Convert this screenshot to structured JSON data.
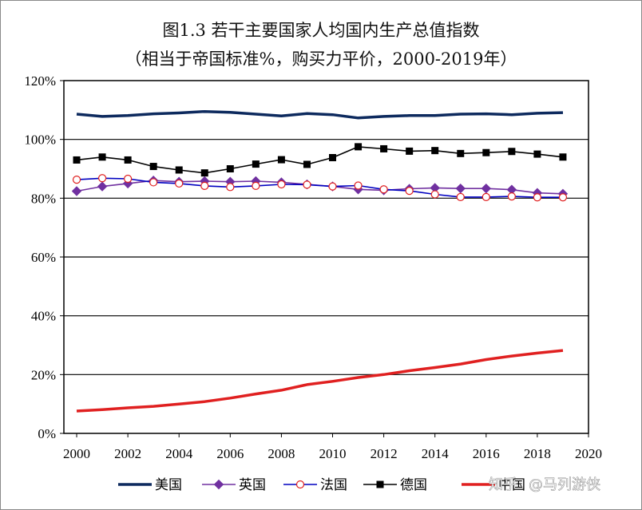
{
  "chart_data": {
    "type": "line",
    "title": "图1.3 若干主要国家人均国内生产总值指数",
    "subtitle": "（相当于帝国标准%，购买力平价，2000-2019年）",
    "xlabel": "",
    "ylabel": "",
    "xlim": [
      2000,
      2020
    ],
    "ylim": [
      0,
      120
    ],
    "x_ticks": [
      "2000",
      "2002",
      "2004",
      "2006",
      "2008",
      "2010",
      "2012",
      "2014",
      "2016",
      "2018",
      "2020"
    ],
    "y_ticks": [
      "0%",
      "20%",
      "40%",
      "60%",
      "80%",
      "100%",
      "120%"
    ],
    "grid": "horizontal",
    "legend_position": "bottom",
    "x": [
      2000,
      2001,
      2002,
      2003,
      2004,
      2005,
      2006,
      2007,
      2008,
      2009,
      2010,
      2011,
      2012,
      2013,
      2014,
      2015,
      2016,
      2017,
      2018,
      2019
    ],
    "series": [
      {
        "name": "美国",
        "color": "#0d2a5e",
        "marker": "none",
        "values": [
          108.6,
          107.8,
          108.1,
          108.7,
          109.0,
          109.5,
          109.2,
          108.6,
          108.0,
          108.8,
          108.4,
          107.3,
          107.8,
          108.1,
          108.1,
          108.6,
          108.7,
          108.4,
          108.9,
          109.1
        ]
      },
      {
        "name": "英国",
        "color": "#7030a0",
        "marker": "diamond",
        "values": [
          82.4,
          84.0,
          85.0,
          86.0,
          85.6,
          85.8,
          85.6,
          85.8,
          85.4,
          84.7,
          84.0,
          83.0,
          82.7,
          83.2,
          83.5,
          83.3,
          83.3,
          82.9,
          81.8,
          81.5
        ]
      },
      {
        "name": "法国",
        "color": "#0000c0",
        "marker": "circle",
        "values": [
          86.3,
          86.8,
          86.6,
          85.4,
          85.0,
          84.2,
          83.8,
          84.2,
          84.7,
          84.6,
          84.0,
          84.3,
          83.0,
          82.5,
          81.3,
          80.4,
          80.4,
          80.6,
          80.3,
          80.3
        ]
      },
      {
        "name": "德国",
        "color": "#000000",
        "marker": "square",
        "values": [
          93.0,
          94.0,
          93.0,
          90.8,
          89.6,
          88.6,
          90.0,
          91.6,
          93.1,
          91.5,
          93.8,
          97.5,
          96.8,
          96.0,
          96.2,
          95.2,
          95.5,
          95.9,
          95.0,
          94.0
        ]
      },
      {
        "name": "中国",
        "color": "#e02020",
        "marker": "none",
        "values": [
          7.6,
          8.1,
          8.7,
          9.2,
          10.0,
          10.8,
          12.0,
          13.4,
          14.7,
          16.6,
          17.7,
          19.0,
          20.0,
          21.3,
          22.4,
          23.6,
          25.1,
          26.3,
          27.3,
          28.2
        ]
      }
    ]
  },
  "watermark": {
    "brand": "知乎",
    "author": "@马列游侠"
  }
}
